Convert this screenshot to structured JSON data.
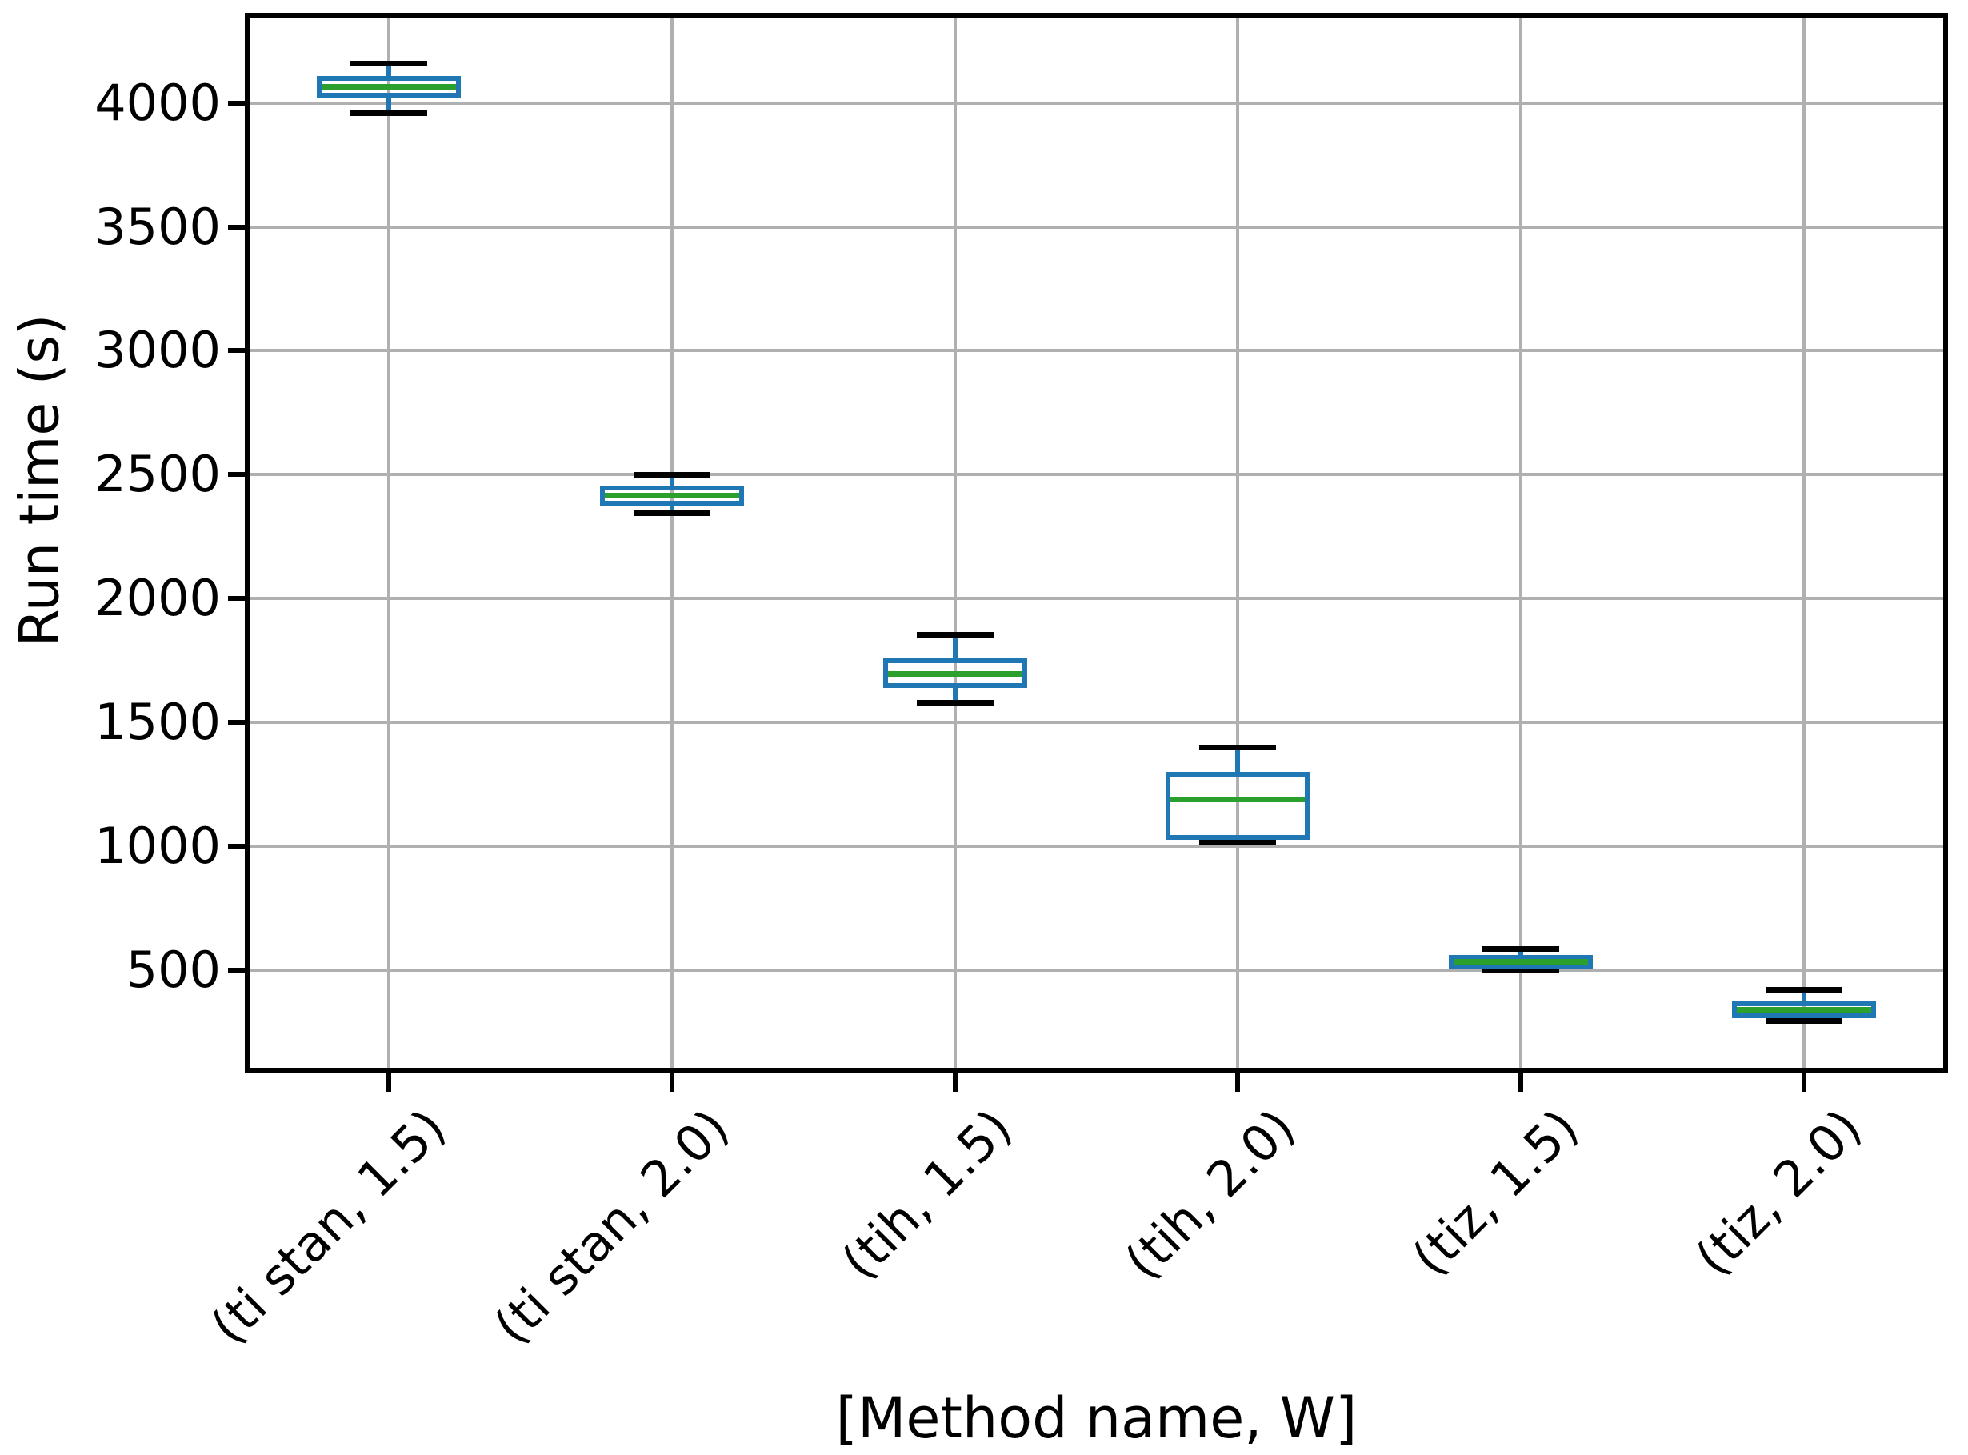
{
  "figure": {
    "background": "#ffffff"
  },
  "chart_data": {
    "type": "boxplot",
    "title": "",
    "xlabel": "[Method name, W]",
    "ylabel": "Run time (s)",
    "categories": [
      "(ti stan, 1.5)",
      "(ti stan, 2.0)",
      "(tih, 1.5)",
      "(tih, 2.0)",
      "(tiz, 1.5)",
      "(tiz, 2.0)"
    ],
    "yticks": [
      500,
      1000,
      1500,
      2000,
      2500,
      3000,
      3500,
      4000
    ],
    "ylim": [
      96,
      4354
    ],
    "xlim_categories": [
      0.5,
      6.5
    ],
    "grid": true,
    "legend": "none",
    "boxes": [
      {
        "category": "(ti stan, 1.5)",
        "whisker_low": 3960,
        "q1": 4030,
        "median": 4065,
        "q3": 4100,
        "whisker_high": 4160
      },
      {
        "category": "(ti stan, 2.0)",
        "whisker_low": 2345,
        "q1": 2385,
        "median": 2415,
        "q3": 2445,
        "whisker_high": 2500
      },
      {
        "category": "(tih, 1.5)",
        "whisker_low": 1580,
        "q1": 1650,
        "median": 1695,
        "q3": 1750,
        "whisker_high": 1855
      },
      {
        "category": "(tih, 2.0)",
        "whisker_low": 1015,
        "q1": 1035,
        "median": 1190,
        "q3": 1290,
        "whisker_high": 1400
      },
      {
        "category": "(tiz, 1.5)",
        "whisker_low": 500,
        "q1": 515,
        "median": 535,
        "q3": 550,
        "whisker_high": 585
      },
      {
        "category": "(tiz, 2.0)",
        "whisker_low": 295,
        "q1": 315,
        "median": 340,
        "q3": 365,
        "whisker_high": 420
      }
    ],
    "colors": {
      "box": "#1f77b4",
      "median": "#2ca02c",
      "whisker_stem": "#1f77b4",
      "whisker_cap": "#000000",
      "grid": "#b0b0b0",
      "axis": "#000000",
      "text": "#000000"
    }
  }
}
